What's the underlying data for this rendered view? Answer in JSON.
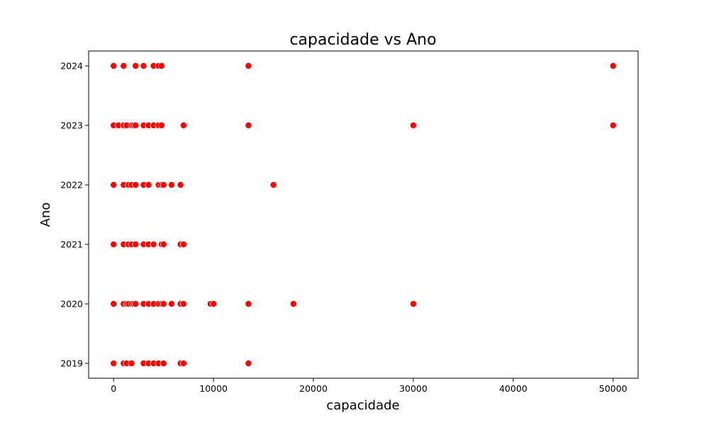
{
  "chart_data": {
    "type": "scatter",
    "title": "capacidade vs Ano",
    "xlabel": "capacidade",
    "ylabel": "Ano",
    "xlim": [
      -2500,
      52500
    ],
    "ylim": [
      2018.75,
      2024.25
    ],
    "xticks": [
      0,
      10000,
      20000,
      30000,
      40000,
      50000
    ],
    "yticks": [
      2019,
      2020,
      2021,
      2022,
      2023,
      2024
    ],
    "grid": false,
    "legend": "none",
    "marker_color": "#ff0000",
    "series": [
      {
        "points": [
          {
            "x": 0,
            "y": 2024
          },
          {
            "x": 1000,
            "y": 2024
          },
          {
            "x": 2200,
            "y": 2024
          },
          {
            "x": 3000,
            "y": 2024
          },
          {
            "x": 4000,
            "y": 2024
          },
          {
            "x": 4500,
            "y": 2024
          },
          {
            "x": 4800,
            "y": 2024
          },
          {
            "x": 13500,
            "y": 2024
          },
          {
            "x": 50000,
            "y": 2024
          },
          {
            "x": 0,
            "y": 2023
          },
          {
            "x": 500,
            "y": 2023
          },
          {
            "x": 1000,
            "y": 2023
          },
          {
            "x": 1300,
            "y": 2023
          },
          {
            "x": 1800,
            "y": 2023
          },
          {
            "x": 2000,
            "y": 2023
          },
          {
            "x": 2200,
            "y": 2023
          },
          {
            "x": 3000,
            "y": 2023
          },
          {
            "x": 3500,
            "y": 2023
          },
          {
            "x": 4000,
            "y": 2023
          },
          {
            "x": 4500,
            "y": 2023
          },
          {
            "x": 4800,
            "y": 2023
          },
          {
            "x": 7000,
            "y": 2023
          },
          {
            "x": 13500,
            "y": 2023
          },
          {
            "x": 30000,
            "y": 2023
          },
          {
            "x": 50000,
            "y": 2023
          },
          {
            "x": 0,
            "y": 2022
          },
          {
            "x": 1000,
            "y": 2022
          },
          {
            "x": 1500,
            "y": 2022
          },
          {
            "x": 1800,
            "y": 2022
          },
          {
            "x": 2200,
            "y": 2022
          },
          {
            "x": 3000,
            "y": 2022
          },
          {
            "x": 3500,
            "y": 2022
          },
          {
            "x": 4500,
            "y": 2022
          },
          {
            "x": 4800,
            "y": 2022
          },
          {
            "x": 5000,
            "y": 2022
          },
          {
            "x": 5800,
            "y": 2022
          },
          {
            "x": 6700,
            "y": 2022
          },
          {
            "x": 16000,
            "y": 2022
          },
          {
            "x": 0,
            "y": 2021
          },
          {
            "x": 1000,
            "y": 2021
          },
          {
            "x": 1500,
            "y": 2021
          },
          {
            "x": 1800,
            "y": 2021
          },
          {
            "x": 2200,
            "y": 2021
          },
          {
            "x": 3000,
            "y": 2021
          },
          {
            "x": 3500,
            "y": 2021
          },
          {
            "x": 4000,
            "y": 2021
          },
          {
            "x": 4800,
            "y": 2021
          },
          {
            "x": 5000,
            "y": 2021
          },
          {
            "x": 6700,
            "y": 2021
          },
          {
            "x": 7000,
            "y": 2021
          },
          {
            "x": 0,
            "y": 2020
          },
          {
            "x": 1000,
            "y": 2020
          },
          {
            "x": 1300,
            "y": 2020
          },
          {
            "x": 1500,
            "y": 2020
          },
          {
            "x": 1800,
            "y": 2020
          },
          {
            "x": 2000,
            "y": 2020
          },
          {
            "x": 2200,
            "y": 2020
          },
          {
            "x": 3000,
            "y": 2020
          },
          {
            "x": 3500,
            "y": 2020
          },
          {
            "x": 4000,
            "y": 2020
          },
          {
            "x": 4500,
            "y": 2020
          },
          {
            "x": 4800,
            "y": 2020
          },
          {
            "x": 5000,
            "y": 2020
          },
          {
            "x": 5800,
            "y": 2020
          },
          {
            "x": 6700,
            "y": 2020
          },
          {
            "x": 7000,
            "y": 2020
          },
          {
            "x": 9700,
            "y": 2020
          },
          {
            "x": 10000,
            "y": 2020
          },
          {
            "x": 13500,
            "y": 2020
          },
          {
            "x": 18000,
            "y": 2020
          },
          {
            "x": 30000,
            "y": 2020
          },
          {
            "x": 0,
            "y": 2019
          },
          {
            "x": 1000,
            "y": 2019
          },
          {
            "x": 1300,
            "y": 2019
          },
          {
            "x": 1800,
            "y": 2019
          },
          {
            "x": 3000,
            "y": 2019
          },
          {
            "x": 3500,
            "y": 2019
          },
          {
            "x": 4000,
            "y": 2019
          },
          {
            "x": 4500,
            "y": 2019
          },
          {
            "x": 5000,
            "y": 2019
          },
          {
            "x": 6700,
            "y": 2019
          },
          {
            "x": 7000,
            "y": 2019
          },
          {
            "x": 13500,
            "y": 2019
          }
        ]
      }
    ]
  }
}
